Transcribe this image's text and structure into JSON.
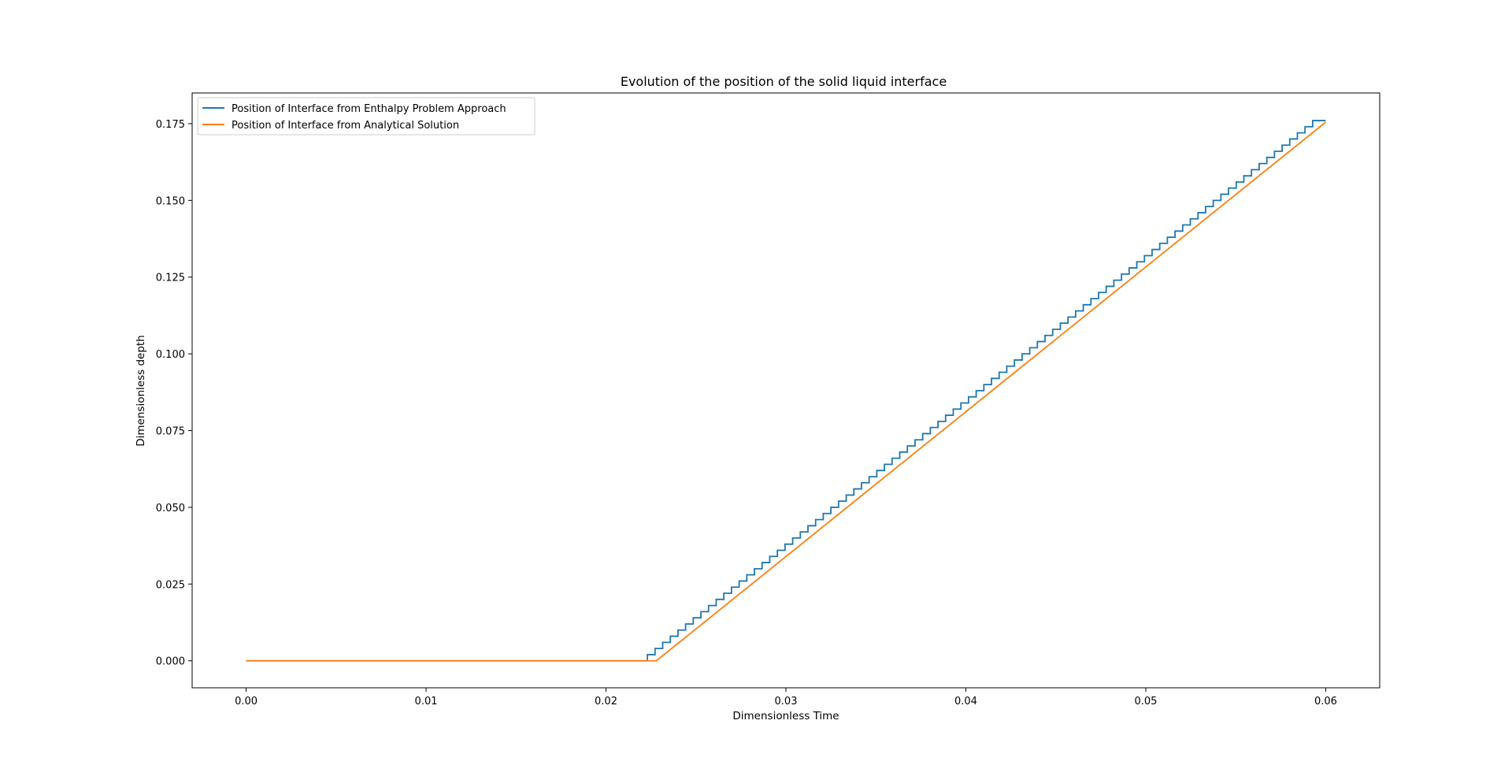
{
  "chart_data": {
    "type": "line",
    "title": "Evolution of the position of the solid liquid interface",
    "xlabel": "Dimensionless Time",
    "ylabel": "Dimensionless depth",
    "xlim": [
      -0.003,
      0.063
    ],
    "ylim": [
      -0.0088,
      0.185
    ],
    "x_ticks": [
      0.0,
      0.01,
      0.02,
      0.03,
      0.04,
      0.05,
      0.06
    ],
    "x_tick_labels": [
      "0.00",
      "0.01",
      "0.02",
      "0.03",
      "0.04",
      "0.05",
      "0.06"
    ],
    "y_ticks": [
      0.0,
      0.025,
      0.05,
      0.075,
      0.1,
      0.125,
      0.15,
      0.175
    ],
    "y_tick_labels": [
      "0.000",
      "0.025",
      "0.050",
      "0.075",
      "0.100",
      "0.125",
      "0.150",
      "0.175"
    ],
    "grid": false,
    "legend_position": "top-left",
    "series": [
      {
        "name": "Position of Interface from Enthalpy Problem Approach",
        "color": "#1f77b4",
        "style": "staircase",
        "onset_x": 0.0223,
        "end_x": 0.0597,
        "end_y": 0.176,
        "step_y": 0.002,
        "points": [
          [
            0.0,
            0.0
          ],
          [
            0.0223,
            0.0
          ],
          [
            0.0597,
            0.176
          ],
          [
            0.06,
            0.176
          ]
        ]
      },
      {
        "name": "Position of Interface from Analytical Solution",
        "color": "#ff7f0e",
        "style": "line",
        "points": [
          [
            0.0,
            0.0
          ],
          [
            0.0228,
            0.0
          ],
          [
            0.06,
            0.1755
          ]
        ]
      }
    ]
  }
}
